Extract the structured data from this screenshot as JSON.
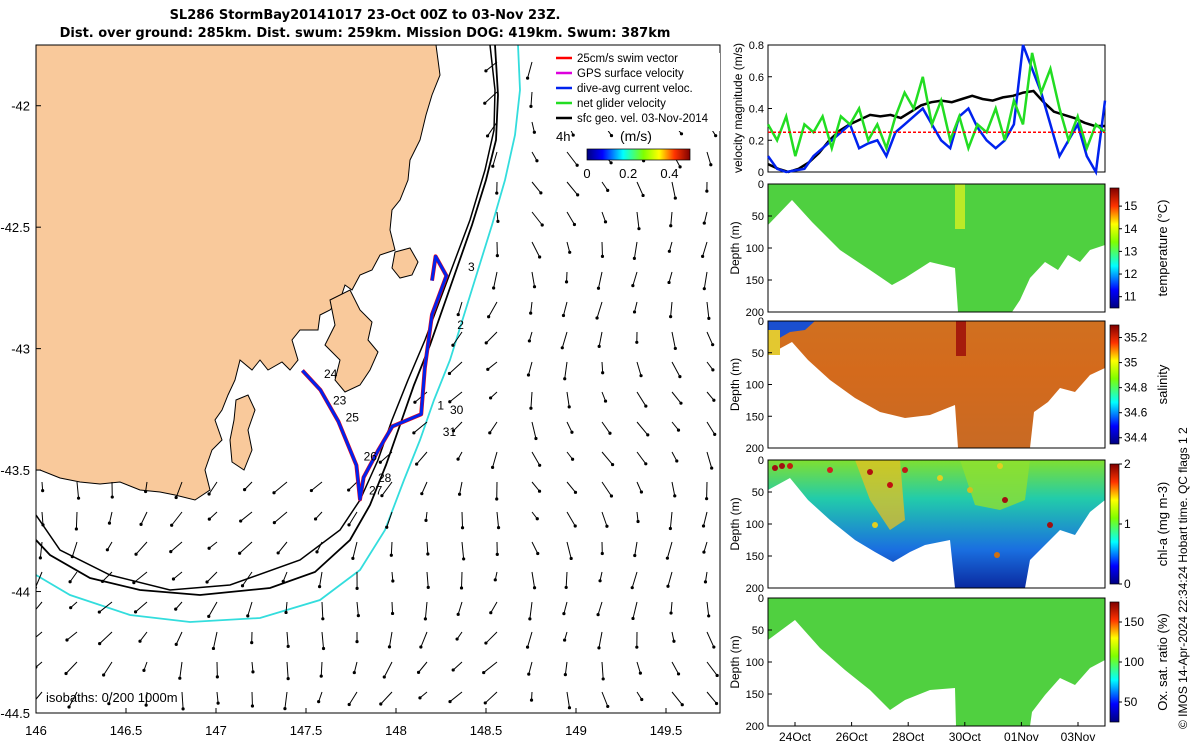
{
  "title_line1": "SL286 StormBay20141017 23-Oct 00Z to 03-Nov 23Z.",
  "title_line2": "Dist. over ground: 285km. Dist. swum: 259km. Mission DOG: 419km. Swum: 387km",
  "copyright": "© IMOS 14-Apr-2024 22:34:24 Hobart time. QC flags 1  2",
  "colors": {
    "land": "#f9c99b",
    "red_track": "#ff0000",
    "blue_track": "#0022ee",
    "green": "#22dd22",
    "cyan_isobath": "#33dddd",
    "black": "#000000"
  },
  "chart_data": [
    {
      "type": "scatter",
      "kind": "map",
      "xlim": [
        146,
        149.8
      ],
      "ylim": [
        -44.5,
        -41.75
      ],
      "xticks": [
        "146",
        "146.5",
        "147",
        "147.5",
        "148",
        "148.5",
        "149",
        "149.5"
      ],
      "yticks": [
        "-42",
        "-42.5",
        "-43",
        "-43.5",
        "-44",
        "-44.5"
      ],
      "isobath_label": "isobaths: 0   200   1000m",
      "speed_colorbar": {
        "title": "(m/s)",
        "ticks": [
          "0",
          "0.2",
          "0.4"
        ],
        "range": [
          0,
          0.5
        ]
      },
      "arrow_scale_label": "4h",
      "legend": [
        {
          "label": "25cm/s swim vector",
          "color": "#ff0000"
        },
        {
          "label": "GPS surface velocity",
          "color": "#dd00dd"
        },
        {
          "label": "dive-avg current veloc.",
          "color": "#0022ee"
        },
        {
          "label": "net glider velocity",
          "color": "#22dd22"
        },
        {
          "label": "sfc geo. vel. 03-Nov-2014",
          "color": "#000000"
        }
      ],
      "track": [
        {
          "lon": 148.2,
          "lat": -42.72
        },
        {
          "lon": 148.22,
          "lat": -42.62
        },
        {
          "lon": 148.28,
          "lat": -42.7
        },
        {
          "lon": 148.2,
          "lat": -42.86
        },
        {
          "lon": 148.16,
          "lat": -43.08
        },
        {
          "lon": 148.14,
          "lat": -43.27
        },
        {
          "lon": 147.98,
          "lat": -43.32
        },
        {
          "lon": 147.9,
          "lat": -43.42
        },
        {
          "lon": 147.82,
          "lat": -43.53
        },
        {
          "lon": 147.8,
          "lat": -43.62
        },
        {
          "lon": 147.78,
          "lat": -43.48
        },
        {
          "lon": 147.68,
          "lat": -43.3
        },
        {
          "lon": 147.58,
          "lat": -43.17
        },
        {
          "lon": 147.48,
          "lat": -43.09
        }
      ],
      "track_labels": [
        {
          "text": "1",
          "lon": 148.23,
          "lat": -43.25
        },
        {
          "text": "2",
          "lon": 148.34,
          "lat": -42.92
        },
        {
          "text": "3",
          "lon": 148.4,
          "lat": -42.68
        },
        {
          "text": "24",
          "lon": 147.6,
          "lat": -43.12
        },
        {
          "text": "23",
          "lon": 147.65,
          "lat": -43.23
        },
        {
          "text": "25",
          "lon": 147.72,
          "lat": -43.3
        },
        {
          "text": "26",
          "lon": 147.82,
          "lat": -43.46
        },
        {
          "text": "27",
          "lon": 147.85,
          "lat": -43.6
        },
        {
          "text": "28",
          "lon": 147.9,
          "lat": -43.55
        },
        {
          "text": "30",
          "lon": 148.3,
          "lat": -43.27
        },
        {
          "text": "31",
          "lon": 148.26,
          "lat": -43.36
        }
      ]
    },
    {
      "type": "line",
      "ylabel": "velocity magnitude (m/s)",
      "ylim": [
        0,
        0.8
      ],
      "yticks": [
        "0",
        "0.2",
        "0.4",
        "0.6",
        "0.8"
      ],
      "series": [
        {
          "color": "#000000",
          "values": [
            0.05,
            0.02,
            0.0,
            0.02,
            0.06,
            0.12,
            0.2,
            0.26,
            0.3,
            0.33,
            0.36,
            0.35,
            0.36,
            0.34,
            0.38,
            0.42,
            0.44,
            0.45,
            0.44,
            0.46,
            0.48,
            0.46,
            0.45,
            0.47,
            0.48,
            0.5,
            0.51,
            0.44,
            0.38,
            0.36,
            0.34,
            0.31,
            0.29,
            0.29
          ]
        },
        {
          "color": "#0022ee",
          "values": [
            0.1,
            0.02,
            0.0,
            0.01,
            0.02,
            0.1,
            0.15,
            0.2,
            0.25,
            0.3,
            0.15,
            0.18,
            0.2,
            0.1,
            0.25,
            0.3,
            0.35,
            0.4,
            0.3,
            0.2,
            0.15,
            0.35,
            0.4,
            0.28,
            0.2,
            0.15,
            0.2,
            0.3,
            0.8,
            0.65,
            0.5,
            0.3,
            0.1,
            0.2,
            0.3,
            0.1,
            0.0,
            0.45
          ]
        },
        {
          "color": "#22dd22",
          "values": [
            0.3,
            0.2,
            0.35,
            0.1,
            0.3,
            0.25,
            0.35,
            0.15,
            0.35,
            0.3,
            0.4,
            0.2,
            0.3,
            0.15,
            0.35,
            0.5,
            0.4,
            0.6,
            0.3,
            0.45,
            0.2,
            0.35,
            0.15,
            0.3,
            0.25,
            0.4,
            0.2,
            0.45,
            0.3,
            0.75,
            0.5,
            0.65,
            0.4,
            0.2,
            0.35,
            0.15,
            0.3,
            0.25
          ]
        },
        {
          "color": "#ff0000",
          "values": [
            0.25,
            0.25
          ]
        }
      ]
    },
    {
      "type": "heatmap",
      "ylabel": "Depth (m)",
      "clabel": "temperature (°C)",
      "yticks": [
        "0",
        "50",
        "100",
        "150",
        "200"
      ],
      "cticks": [
        "11",
        "12",
        "13",
        "14",
        "15"
      ],
      "crange": [
        10.5,
        15.8
      ]
    },
    {
      "type": "heatmap",
      "ylabel": "Depth (m)",
      "clabel": "salinity",
      "yticks": [
        "0",
        "50",
        "100",
        "150",
        "200"
      ],
      "cticks": [
        "34.4",
        "34.6",
        "34.8",
        "35",
        "35.2"
      ],
      "crange": [
        34.35,
        35.3
      ]
    },
    {
      "type": "heatmap",
      "ylabel": "Depth (m)",
      "clabel": "chl-a (mg m-3)",
      "yticks": [
        "0",
        "50",
        "100",
        "150",
        "200"
      ],
      "cticks": [
        "0",
        "1",
        "2"
      ],
      "crange": [
        0,
        2
      ]
    },
    {
      "type": "heatmap",
      "ylabel": "Depth (m)",
      "clabel": "Ox. sat. ratio (%)",
      "yticks": [
        "0",
        "50",
        "100",
        "150",
        "200"
      ],
      "cticks": [
        "50",
        "100",
        "150"
      ],
      "crange": [
        25,
        175
      ],
      "xticks": [
        "24Oct",
        "26Oct",
        "28Oct",
        "30Oct",
        "01Nov",
        "03Nov"
      ]
    }
  ]
}
